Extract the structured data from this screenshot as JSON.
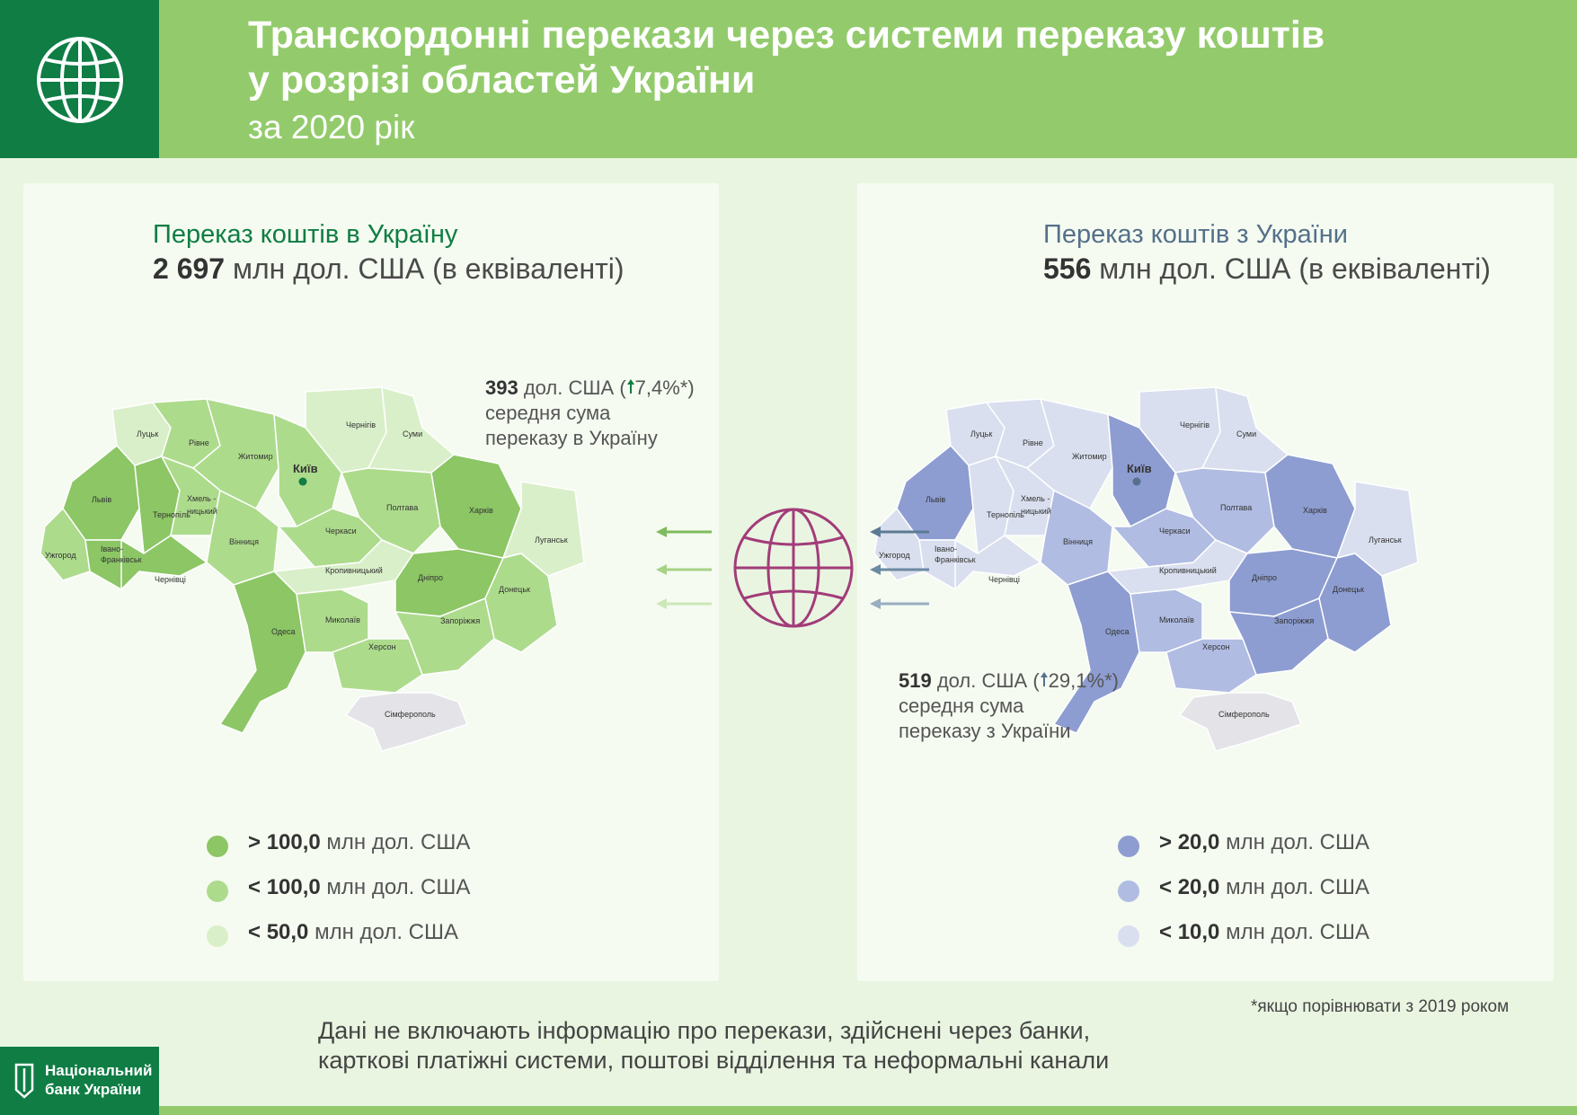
{
  "header": {
    "title_line1": "Транскордонні перекази через системи переказу коштів",
    "title_line2": "у розрізі областей України",
    "subtitle": "за 2020 рік",
    "icon": "globe-icon"
  },
  "colors": {
    "header_bg": "#93cb6c",
    "brand_green": "#0f7d44",
    "in_high": "#8cc665",
    "in_mid": "#addb8c",
    "in_low": "#d9efc9",
    "out_high": "#8d9dd1",
    "out_mid": "#b0bce2",
    "out_low": "#d9dfee",
    "globe": "#a23c79",
    "arrow_in": "#7ebc5c",
    "arrow_out": "#5c7b93"
  },
  "left_panel": {
    "heading": "Переказ коштів в Україну",
    "value": "2 697",
    "value_unit": "млн дол. США (в еквіваленті)",
    "note_value": "393",
    "note_unit": "дол. США (",
    "note_change": "7,4%",
    "note_star": "*)",
    "note_line2": "середня сума",
    "note_line3": "переказу в Україну",
    "legend": [
      {
        "op": ">",
        "value": "100,0",
        "unit": "млн дол. США"
      },
      {
        "op": "<",
        "value": "100,0",
        "unit": "млн дол. США"
      },
      {
        "op": "<",
        "value": "50,0",
        "unit": "млн дол. США"
      }
    ]
  },
  "right_panel": {
    "heading": "Переказ коштів з України",
    "value": "556",
    "value_unit": "млн дол. США (в еквіваленті)",
    "note_value": "519",
    "note_unit": "дол. США (",
    "note_change": "29,1%",
    "note_star": "*)",
    "note_line2": "середня сума",
    "note_line3": "переказу з України",
    "legend": [
      {
        "op": ">",
        "value": "20,0",
        "unit": "млн дол. США"
      },
      {
        "op": "<",
        "value": "20,0",
        "unit": "млн дол. США"
      },
      {
        "op": "<",
        "value": "10,0",
        "unit": "млн дол. США"
      }
    ]
  },
  "regions": {
    "lutsk": "Луцьк",
    "rivne": "Рівне",
    "zhytomyr": "Житомир",
    "chernihiv": "Чернігів",
    "sumy": "Суми",
    "kyiv": "Київ",
    "lviv": "Львів",
    "ternopil": "Тернопіль",
    "khmel1": "Хмель -",
    "khmel2": "ницький",
    "vinnytsia": "Вінниця",
    "cherkasy": "Черкаси",
    "poltava": "Полтава",
    "kharkiv": "Харків",
    "luhansk": "Луганськ",
    "uzhhorod": "Ужгород",
    "ivano1": "Івано-",
    "ivano2": "Франківськ",
    "chernivtsi": "Чернівці",
    "kropyvnytskyi": "Кропивницький",
    "dnipro": "Дніпро",
    "donetsk": "Донецьк",
    "odesa": "Одеса",
    "mykolaiv": "Миколаїв",
    "zaporizhzhia": "Запоріжжя",
    "kherson": "Херсон",
    "simferopol": "Сімферополь"
  },
  "map_in_levels": {
    "lutsk": "low",
    "rivne": "mid",
    "zhytomyr": "mid",
    "chernihiv": "low",
    "sumy": "low",
    "kyiv": "mid",
    "lviv": "high",
    "ternopil": "high",
    "khmel": "mid",
    "vinnytsia": "mid",
    "cherkasy": "mid",
    "poltava": "mid",
    "kharkiv": "high",
    "luhansk": "low",
    "uzhhorod": "mid",
    "ivano": "high",
    "chernivtsi": "high",
    "kropyvnytskyi": "low",
    "dnipro": "high",
    "donetsk": "mid",
    "odesa": "high",
    "mykolaiv": "mid",
    "zaporizhzhia": "mid",
    "kherson": "mid",
    "crimea": "crimea"
  },
  "map_out_levels": {
    "lutsk": "low",
    "rivne": "low",
    "zhytomyr": "low",
    "chernihiv": "low",
    "sumy": "low",
    "kyiv": "high",
    "lviv": "high",
    "ternopil": "low",
    "khmel": "low",
    "vinnytsia": "mid",
    "cherkasy": "mid",
    "poltava": "mid",
    "kharkiv": "high",
    "luhansk": "low",
    "uzhhorod": "low",
    "ivano": "low",
    "chernivtsi": "low",
    "kropyvnytskyi": "low",
    "dnipro": "high",
    "donetsk": "high",
    "odesa": "high",
    "mykolaiv": "mid",
    "zaporizhzhia": "high",
    "kherson": "mid",
    "crimea": "crimea"
  },
  "footnote": "*якщо порівнювати з 2019 роком",
  "disclaimer_line1": "Дані не включають інформацію про перекази, здійснені через банки,",
  "disclaimer_line2": "карткові платіжні системи, поштові відділення та неформальні канали",
  "logo": {
    "line1": "Національний",
    "line2": "банк України"
  }
}
